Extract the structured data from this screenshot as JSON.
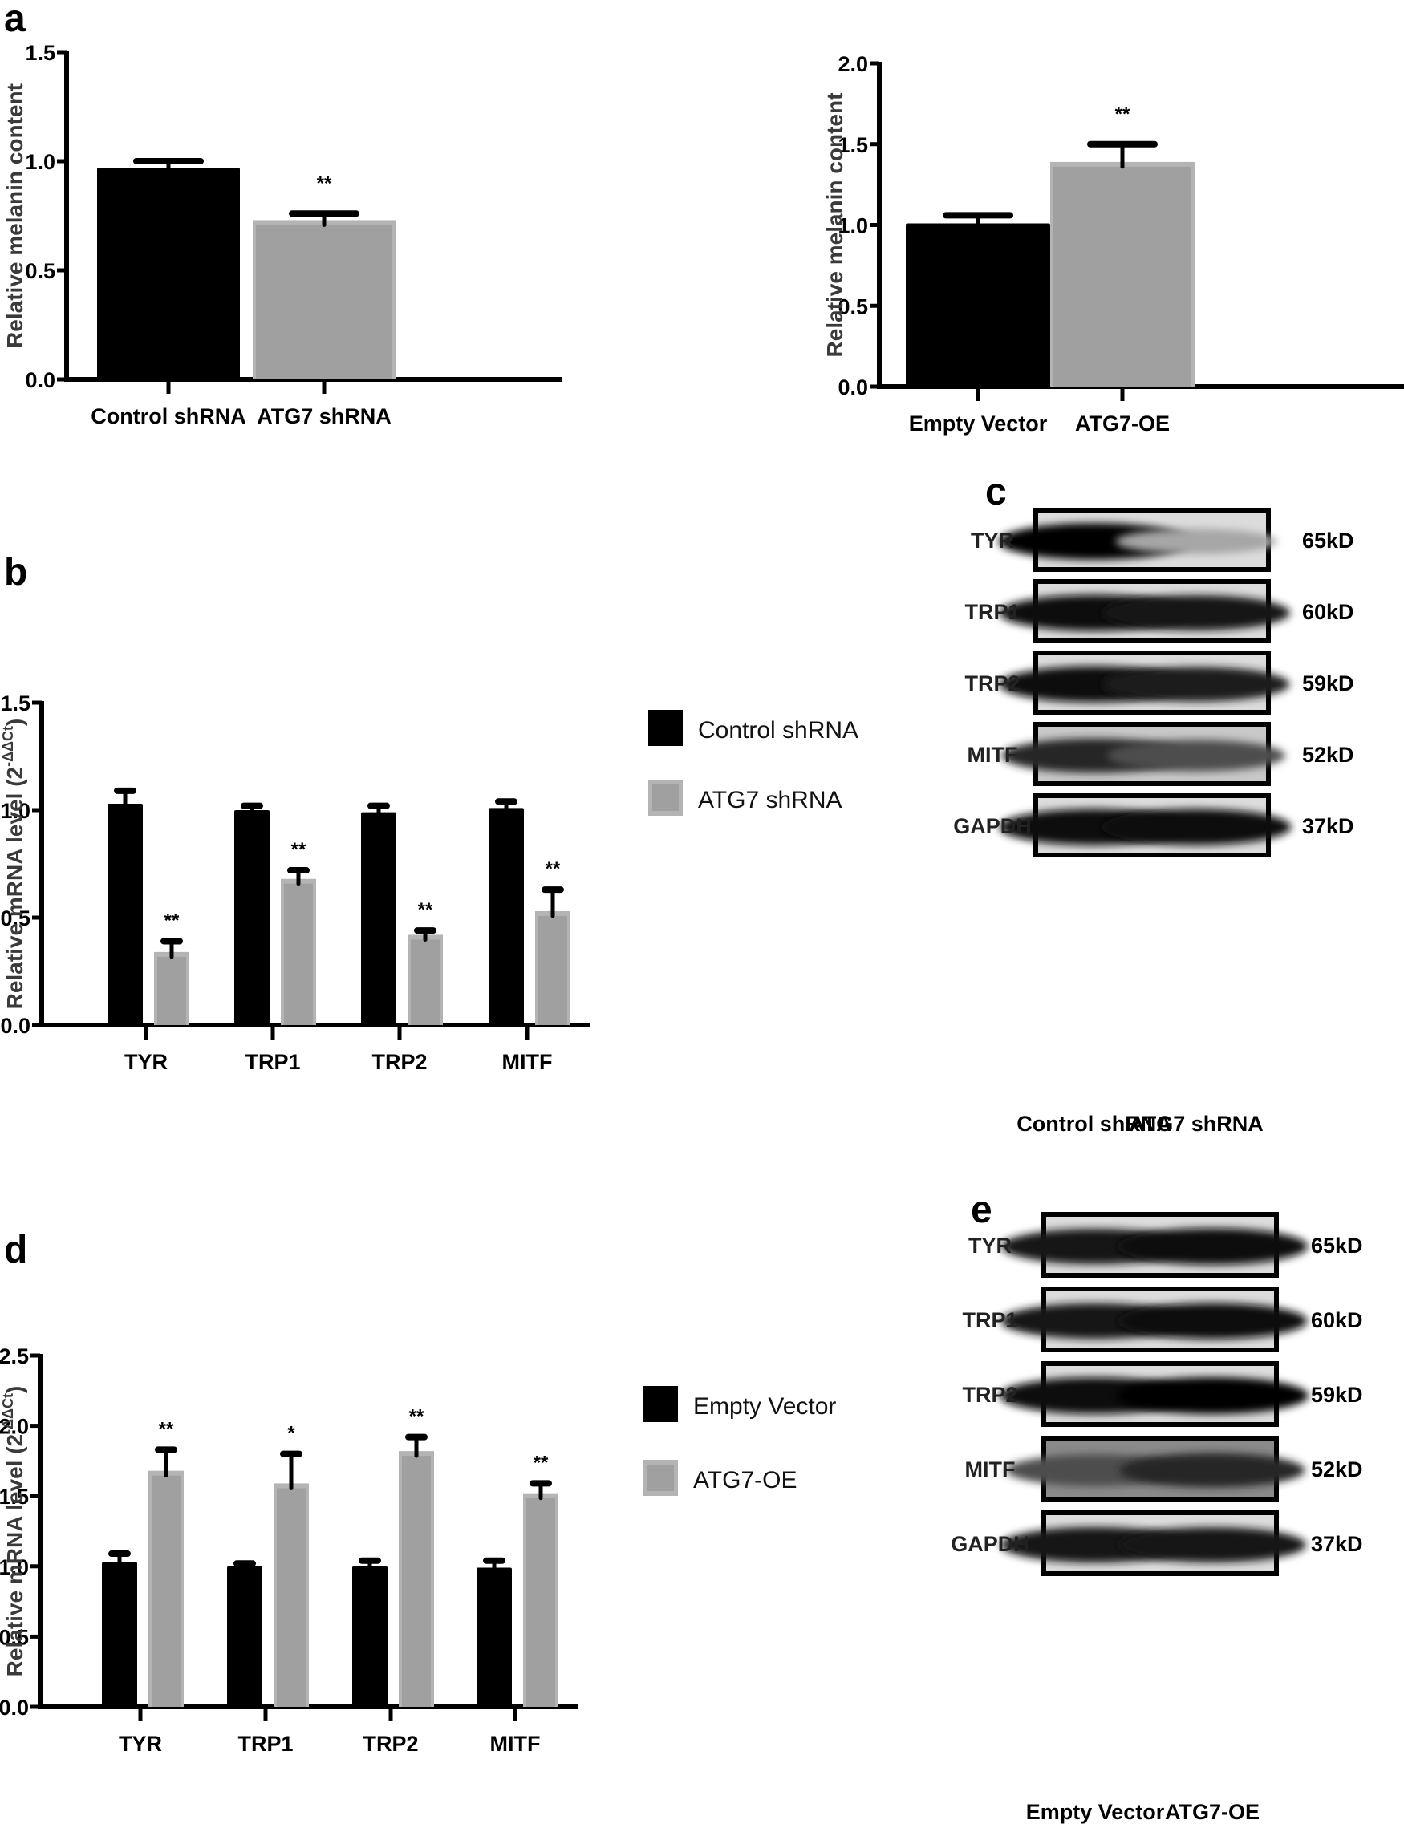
{
  "panels": {
    "a": "a",
    "b": "b",
    "c": "c",
    "d": "d",
    "e": "e"
  },
  "colors": {
    "series_dark": "#000000",
    "series_light_fill": "#a0a0a0",
    "series_light_edge": "#b4b4b4",
    "axis": "#000000"
  },
  "chart_data": [
    {
      "id": "a_left",
      "type": "bar",
      "title": "",
      "xlabel": "",
      "ylabel": "Relative melanin content",
      "ylim": [
        0,
        1.5
      ],
      "yticks": [
        "0.0",
        "0.5",
        "1.0",
        "1.5"
      ],
      "grid": false,
      "categories": [
        "Control shRNA",
        "ATG7 shRNA"
      ],
      "values": [
        0.97,
        0.73
      ],
      "errors": [
        0.03,
        0.03
      ],
      "significance": [
        "",
        "**"
      ]
    },
    {
      "id": "a_right",
      "type": "bar",
      "title": "",
      "xlabel": "",
      "ylabel": "Relative melanin content",
      "ylim": [
        0,
        2.0
      ],
      "yticks": [
        "0.0",
        "0.5",
        "1.0",
        "1.5",
        "2.0"
      ],
      "grid": false,
      "categories": [
        "Empty Vector",
        "ATG7-OE"
      ],
      "values": [
        1.01,
        1.39
      ],
      "errors": [
        0.05,
        0.11
      ],
      "significance": [
        "",
        "**"
      ]
    },
    {
      "id": "b",
      "type": "bar",
      "title": "",
      "xlabel": "",
      "ylabel": "Relative mRNA level (2^-ΔΔCt)",
      "ylabel_main": "Relative mRNA level (2",
      "ylabel_sup": "-ΔΔCt",
      "ylabel_end": ")",
      "ylim": [
        0,
        1.5
      ],
      "yticks": [
        "0.0",
        "0.5",
        "1.0",
        "1.5"
      ],
      "grid": false,
      "legend_position": "right",
      "categories": [
        "TYR",
        "TRP1",
        "TRP2",
        "MITF"
      ],
      "series": [
        {
          "name": "Control shRNA",
          "values": [
            1.03,
            1.0,
            0.99,
            1.01
          ],
          "errors": [
            0.06,
            0.02,
            0.03,
            0.03
          ],
          "significance": [
            "",
            "",
            "",
            ""
          ]
        },
        {
          "name": "ATG7 shRNA",
          "values": [
            0.34,
            0.68,
            0.42,
            0.53
          ],
          "errors": [
            0.05,
            0.04,
            0.02,
            0.1
          ],
          "significance": [
            "**",
            "**",
            "**",
            "**"
          ]
        }
      ]
    },
    {
      "id": "d",
      "type": "bar",
      "title": "",
      "xlabel": "",
      "ylabel": "Relative mRNA level (2^-ΔΔCt)",
      "ylabel_main": "Relative mRNA level  (2",
      "ylabel_sup": "-ΔΔCt",
      "ylabel_end": ")",
      "ylim": [
        0,
        2.5
      ],
      "yticks": [
        "0.0",
        "0.5",
        "1.0",
        "1.5",
        "2.0",
        "2.5"
      ],
      "grid": false,
      "legend_position": "right",
      "categories": [
        "TYR",
        "TRP1",
        "TRP2",
        "MITF"
      ],
      "series": [
        {
          "name": "Empty Vector",
          "values": [
            1.03,
            1.0,
            1.0,
            0.99
          ],
          "errors": [
            0.06,
            0.02,
            0.04,
            0.05
          ],
          "significance": [
            "",
            "",
            "",
            ""
          ]
        },
        {
          "name": "ATG7-OE",
          "values": [
            1.68,
            1.59,
            1.82,
            1.52
          ],
          "errors": [
            0.15,
            0.21,
            0.1,
            0.07
          ],
          "significance": [
            "**",
            "*",
            "**",
            "**"
          ]
        }
      ]
    }
  ],
  "blots": {
    "c": {
      "rows": [
        {
          "protein": "TYR",
          "size": "65kD",
          "bands": [
            0.98,
            0.35
          ]
        },
        {
          "protein": "TRP1",
          "size": "60kD",
          "bands": [
            0.95,
            0.9
          ]
        },
        {
          "protein": "TRP2",
          "size": "59kD",
          "bands": [
            0.95,
            0.88
          ]
        },
        {
          "protein": "MITF",
          "size": "52kD",
          "bands": [
            0.85,
            0.7
          ]
        },
        {
          "protein": "GAPDH",
          "size": "37kD",
          "bands": [
            0.95,
            0.95
          ]
        }
      ],
      "lanes": [
        "Control shRNA",
        "ATG7 shRNA"
      ]
    },
    "e": {
      "rows": [
        {
          "protein": "TYR",
          "size": "65kD",
          "bands": [
            0.9,
            0.97
          ]
        },
        {
          "protein": "TRP1",
          "size": "60kD",
          "bands": [
            0.92,
            0.95
          ]
        },
        {
          "protein": "TRP2",
          "size": "59kD",
          "bands": [
            0.97,
            1.0
          ]
        },
        {
          "protein": "MITF",
          "size": "52kD",
          "bands": [
            0.7,
            0.85
          ]
        },
        {
          "protein": "GAPDH",
          "size": "37kD",
          "bands": [
            0.92,
            0.9
          ]
        }
      ],
      "lanes": [
        "Empty Vector",
        "ATG7-OE"
      ]
    }
  }
}
